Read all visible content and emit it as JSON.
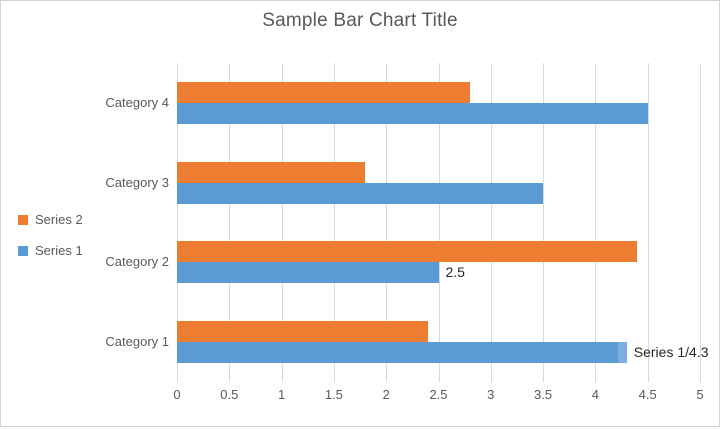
{
  "chart_data": {
    "type": "bar",
    "orientation": "horizontal",
    "title": "Sample Bar Chart Title",
    "categories": [
      "Category 1",
      "Category 2",
      "Category 3",
      "Category 4"
    ],
    "series": [
      {
        "name": "Series 1",
        "color": "#5B9BD5",
        "values": [
          4.3,
          2.5,
          3.5,
          4.5
        ]
      },
      {
        "name": "Series 2",
        "color": "#ED7D31",
        "values": [
          2.4,
          4.4,
          1.8,
          2.8
        ]
      }
    ],
    "xlim": [
      0,
      5
    ],
    "xticks": [
      0,
      0.5,
      1,
      1.5,
      2,
      2.5,
      3,
      3.5,
      4,
      4.5,
      5
    ],
    "xtick_labels": [
      "0",
      "0.5",
      "1",
      "1.5",
      "2",
      "2.5",
      "3",
      "3.5",
      "4",
      "4.5",
      "5"
    ],
    "grid": true,
    "legend_position": "left",
    "legend_order": [
      "Series 2",
      "Series 1"
    ],
    "data_labels": [
      {
        "category": "Category 2",
        "series": "Series 1",
        "text": "2.5",
        "selected": false
      },
      {
        "category": "Category 1",
        "series": "Series 1",
        "text": "Series 1/4.3",
        "selected": true
      }
    ],
    "colors": {
      "grid": "#D9D9D9",
      "axis_text": "#595959",
      "title_text": "#595959",
      "data_label_text": "#262626",
      "selected_tip": "#7FAEDC",
      "chart_border": "#D3D3D3"
    }
  }
}
